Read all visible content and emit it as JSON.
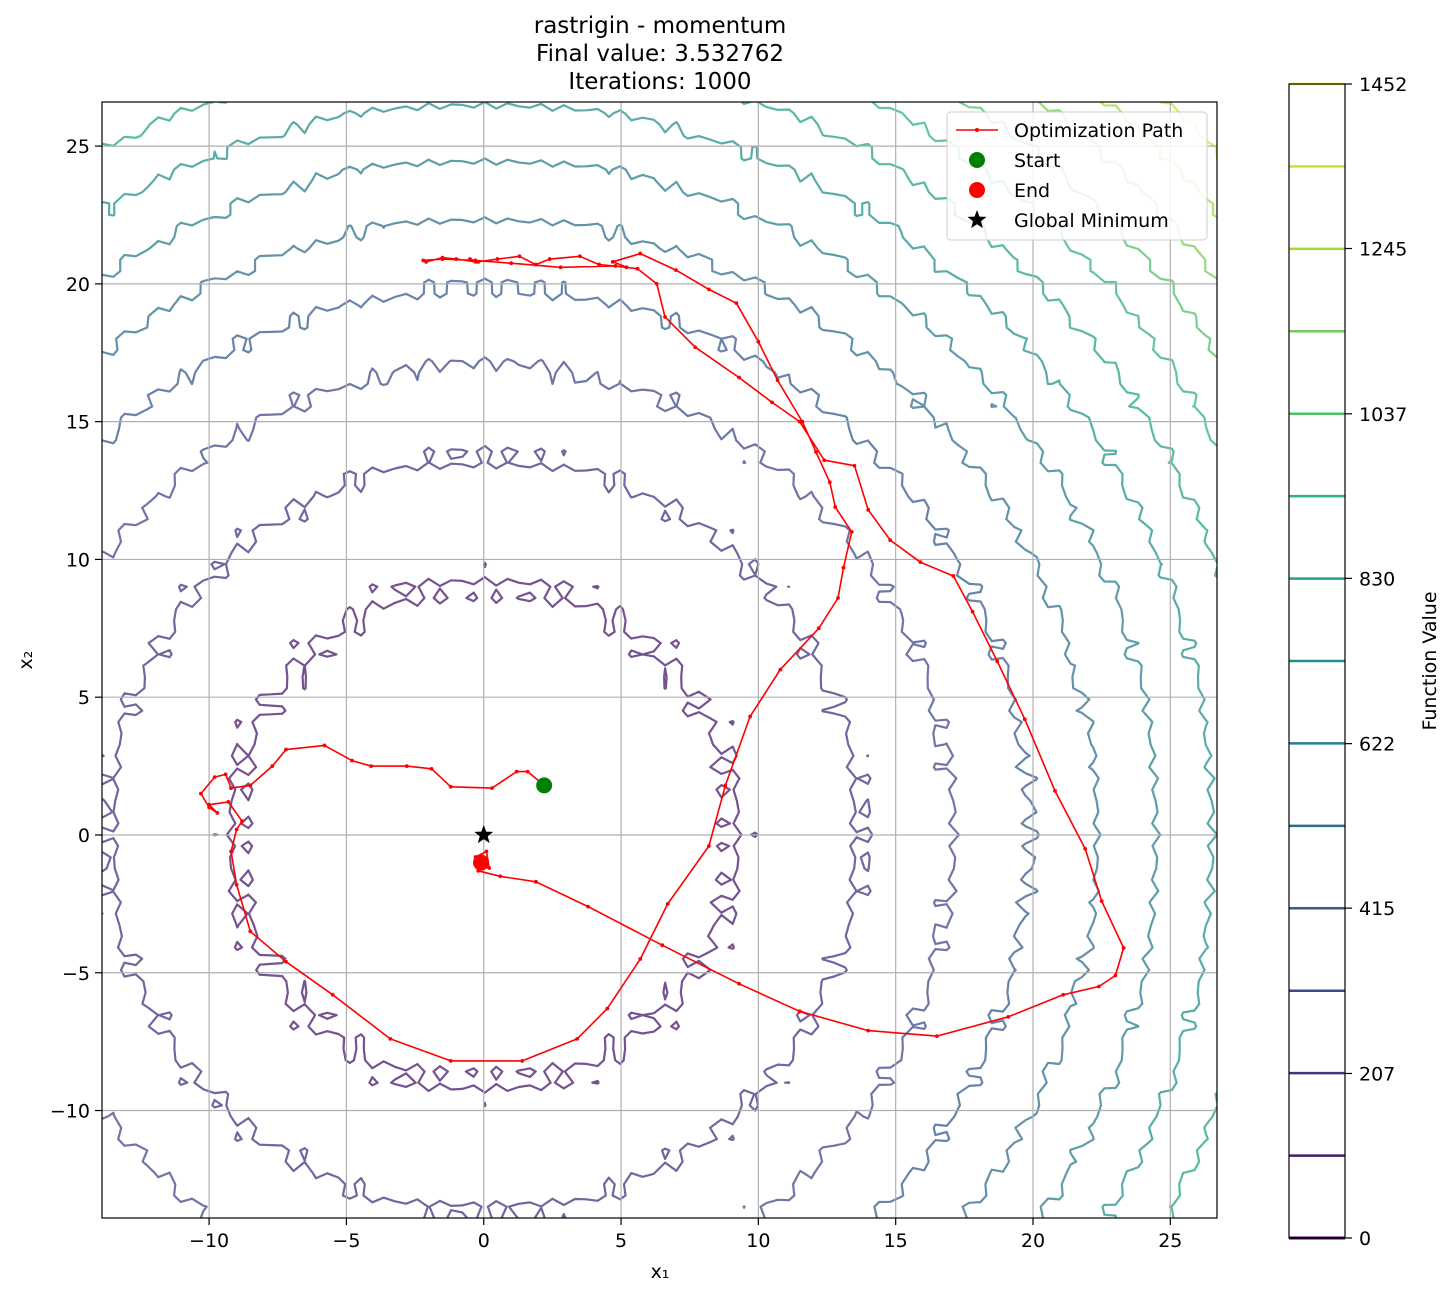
{
  "chart_data": {
    "type": "contour",
    "title_lines": [
      "rastrigin - momentum",
      "Final value: 3.532762",
      "Iterations: 1000"
    ],
    "xlabel": "x₁",
    "ylabel": "x₂",
    "xlim": [
      -13.9,
      26.7
    ],
    "ylim": [
      -13.9,
      26.6
    ],
    "xticks": [
      -10,
      -5,
      0,
      5,
      10,
      15,
      20,
      25
    ],
    "yticks": [
      -10,
      -5,
      0,
      5,
      10,
      15,
      20,
      25
    ],
    "grid": true,
    "function": "rastrigin",
    "contour_levels": [
      103.7,
      207.4,
      311.1,
      414.9,
      518.6,
      622.3,
      726.0,
      829.7,
      933.4,
      1037.1,
      1140.9,
      1244.6,
      1348.3,
      1452.0
    ],
    "colorbar": {
      "label": "Function Value",
      "range": [
        0,
        1452
      ],
      "tick_labels": [
        "0",
        "207",
        "415",
        "622",
        "830",
        "1037",
        "1245",
        "1452"
      ],
      "tick_values": [
        0,
        207,
        415,
        622,
        830,
        1037,
        1245,
        1452
      ]
    },
    "legend": {
      "placement": "top-right",
      "entries": [
        {
          "label": "Optimization Path",
          "kind": "line-marker",
          "color": "#ff0000"
        },
        {
          "label": "Start",
          "kind": "circle",
          "color": "#008000"
        },
        {
          "label": "End",
          "kind": "circle",
          "color": "#ff0000"
        },
        {
          "label": "Global Minimum",
          "kind": "star",
          "color": "#000000"
        }
      ]
    },
    "start": {
      "x": 2.2,
      "y": 1.8,
      "color": "#008000"
    },
    "end": {
      "x": -0.1,
      "y": -1.0,
      "color": "#ff0000"
    },
    "global_minimum": {
      "x": 0,
      "y": 0,
      "color": "#000000"
    },
    "path_color": "#ff0000",
    "path": [
      [
        2.2,
        1.8
      ],
      [
        1.6,
        2.3
      ],
      [
        1.2,
        2.3
      ],
      [
        0.3,
        1.7
      ],
      [
        -1.2,
        1.75
      ],
      [
        -1.9,
        2.4
      ],
      [
        -2.8,
        2.5
      ],
      [
        -4.1,
        2.5
      ],
      [
        -4.8,
        2.7
      ],
      [
        -5.8,
        3.25
      ],
      [
        -7.2,
        3.1
      ],
      [
        -7.7,
        2.5
      ],
      [
        -8.5,
        1.8
      ],
      [
        -9.2,
        1.7
      ],
      [
        -9.4,
        2.2
      ],
      [
        -9.8,
        2.1
      ],
      [
        -10.3,
        1.5
      ],
      [
        -10.0,
        1.0
      ],
      [
        -9.7,
        0.8
      ],
      [
        -10.0,
        1.1
      ],
      [
        -9.3,
        1.2
      ],
      [
        -8.8,
        0.5
      ],
      [
        -9.0,
        0.2
      ],
      [
        -9.2,
        -0.6
      ],
      [
        -9.0,
        -1.8
      ],
      [
        -8.5,
        -3.5
      ],
      [
        -7.2,
        -4.6
      ],
      [
        -5.5,
        -5.8
      ],
      [
        -3.4,
        -7.4
      ],
      [
        -1.2,
        -8.2
      ],
      [
        1.4,
        -8.2
      ],
      [
        3.4,
        -7.4
      ],
      [
        4.5,
        -6.3
      ],
      [
        5.7,
        -4.5
      ],
      [
        6.7,
        -2.5
      ],
      [
        8.2,
        -0.4
      ],
      [
        8.8,
        1.8
      ],
      [
        9.7,
        4.3
      ],
      [
        10.8,
        6.0
      ],
      [
        12.2,
        7.5
      ],
      [
        12.9,
        8.6
      ],
      [
        13.1,
        9.7
      ],
      [
        13.4,
        11.0
      ],
      [
        12.8,
        11.9
      ],
      [
        12.6,
        12.8
      ],
      [
        12.1,
        13.9
      ],
      [
        11.6,
        15.0
      ],
      [
        10.7,
        16.5
      ],
      [
        10.0,
        17.9
      ],
      [
        9.2,
        19.3
      ],
      [
        8.2,
        19.8
      ],
      [
        7.0,
        20.5
      ],
      [
        5.7,
        21.1
      ],
      [
        4.7,
        20.8
      ],
      [
        5.2,
        20.6
      ],
      [
        4.2,
        20.7
      ],
      [
        3.5,
        21.0
      ],
      [
        2.4,
        20.9
      ],
      [
        1.9,
        20.7
      ],
      [
        1.3,
        21.0
      ],
      [
        0.5,
        20.9
      ],
      [
        -0.2,
        20.8
      ],
      [
        -0.5,
        20.9
      ],
      [
        -0.3,
        20.8
      ],
      [
        -1.0,
        20.9
      ],
      [
        -1.5,
        20.95
      ],
      [
        -2.1,
        20.8
      ],
      [
        -2.2,
        20.85
      ],
      [
        -1.5,
        20.9
      ],
      [
        -0.3,
        20.85
      ],
      [
        1.0,
        20.75
      ],
      [
        2.8,
        20.6
      ],
      [
        4.8,
        20.65
      ],
      [
        5.6,
        20.55
      ],
      [
        6.3,
        20.0
      ],
      [
        6.6,
        18.8
      ],
      [
        7.7,
        17.7
      ],
      [
        9.3,
        16.6
      ],
      [
        10.5,
        15.7
      ],
      [
        11.5,
        15.0
      ],
      [
        12.4,
        13.6
      ],
      [
        13.5,
        13.4
      ],
      [
        14.0,
        11.8
      ],
      [
        14.8,
        10.7
      ],
      [
        15.9,
        9.9
      ],
      [
        17.1,
        9.4
      ],
      [
        17.8,
        8.1
      ],
      [
        18.7,
        6.3
      ],
      [
        19.7,
        4.2
      ],
      [
        20.8,
        1.6
      ],
      [
        21.9,
        -0.5
      ],
      [
        22.5,
        -2.4
      ],
      [
        23.3,
        -4.1
      ],
      [
        23.0,
        -5.1
      ],
      [
        22.4,
        -5.5
      ],
      [
        21.1,
        -5.8
      ],
      [
        19.1,
        -6.6
      ],
      [
        16.5,
        -7.3
      ],
      [
        14.0,
        -7.1
      ],
      [
        11.5,
        -6.4
      ],
      [
        9.3,
        -5.4
      ],
      [
        6.5,
        -4.0
      ],
      [
        3.8,
        -2.6
      ],
      [
        1.9,
        -1.7
      ],
      [
        0.6,
        -1.5
      ],
      [
        -0.2,
        -1.3
      ],
      [
        0.1,
        -1.05
      ],
      [
        -0.3,
        -0.8
      ],
      [
        0.1,
        -0.6
      ],
      [
        0.2,
        -1.2
      ],
      [
        -0.2,
        -1.1
      ],
      [
        0.05,
        -0.9
      ],
      [
        -0.1,
        -1.0
      ]
    ]
  }
}
